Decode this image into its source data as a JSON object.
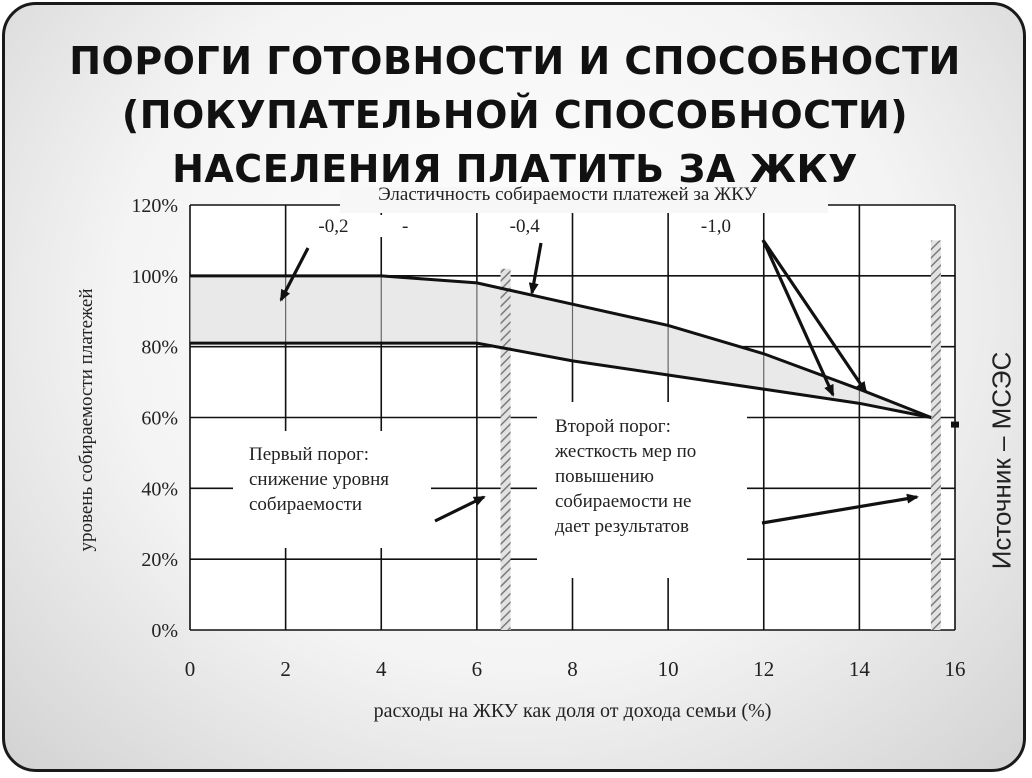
{
  "title_lines": [
    "ПОРОГИ ГОТОВНОСТИ И СПОСОБНОСТИ",
    "(ПОКУПАТЕЛЬНОЙ СПОСОБНОСТИ)",
    "НАСЕЛЕНИЯ ПЛАТИТЬ ЗА ЖКУ"
  ],
  "source_label": "Источник – МСЭС",
  "box1_lines": [
    "Первый порог:",
    "снижение уровня",
    "собираемости"
  ],
  "box2_lines": [
    "Второй порог:",
    "жесткость мер по",
    "повышению",
    "собираемости не",
    "дает результатов"
  ],
  "chart_data": {
    "type": "line",
    "xlabel": "расходы на ЖКУ как доля от дохода семьи (%)",
    "ylabel": "уровень собираемости платежей",
    "xlim": [
      0,
      16
    ],
    "ylim": [
      0,
      120
    ],
    "x_ticks": [
      0,
      2,
      4,
      6,
      8,
      10,
      12,
      14,
      16
    ],
    "y_ticks": [
      0,
      20,
      40,
      60,
      80,
      100,
      120
    ],
    "y_tick_labels": [
      "0%",
      "20%",
      "40%",
      "60%",
      "80%",
      "100%",
      "120%"
    ],
    "grid": true,
    "series": [
      {
        "x": [
          0,
          4,
          6,
          8,
          10,
          12,
          14,
          15.5
        ],
        "y": [
          100,
          100,
          98,
          92,
          86,
          78,
          68,
          60
        ]
      },
      {
        "x": [
          0,
          6,
          8,
          10,
          12,
          14,
          15.5
        ],
        "y": [
          81,
          81,
          76,
          72,
          68,
          64,
          60
        ]
      }
    ],
    "thresholds_x": [
      6.6,
      15.6
    ],
    "elasticity": {
      "caption": "Эластичность собираемости платежей за ЖКУ",
      "labels": [
        {
          "text": "-0,2",
          "x": 3.0
        },
        {
          "text": "-",
          "x": 4.5
        },
        {
          "text": "-0,4",
          "x": 7.0
        },
        {
          "text": "-1,0",
          "x": 11.0
        }
      ]
    },
    "tail_point": {
      "x": 16.0,
      "y": 58
    }
  }
}
